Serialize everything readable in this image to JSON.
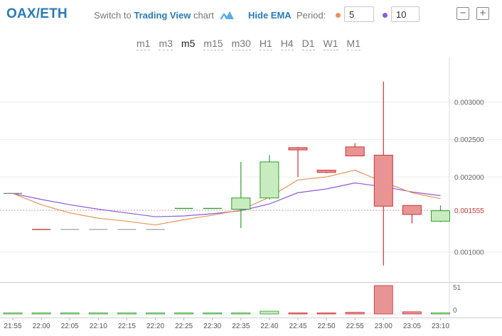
{
  "header": {
    "pair": "OAX/ETH",
    "switch_prefix": "Switch to",
    "switch_link": "Trading View",
    "switch_suffix": "chart",
    "hide_ema": "Hide EMA",
    "period_label": "Period:",
    "period1": "5",
    "period2": "10",
    "zoom_out": "−",
    "zoom_in": "+"
  },
  "timeframes": [
    "m1",
    "m3",
    "m5",
    "m15",
    "m30",
    "H1",
    "H4",
    "D1",
    "W1",
    "M1"
  ],
  "active_timeframe": "m5",
  "colors": {
    "ema1": "#e8935a",
    "ema2": "#8a5be0",
    "up": "#2ca02c",
    "up_fill": "#c8ecbf",
    "down": "#cc3333",
    "down_fill": "#e89494",
    "accent": "#2a7ab8"
  },
  "chart_data": {
    "type": "candlestick",
    "x_labels": [
      "21:55",
      "22:00",
      "22:05",
      "22:10",
      "22:15",
      "22:20",
      "22:25",
      "22:30",
      "22:35",
      "22:40",
      "22:45",
      "22:50",
      "22:55",
      "23:00",
      "23:05",
      "23:10"
    ],
    "y_ticks": [
      "0.003000",
      "0.002500",
      "0.002000",
      "0.001000"
    ],
    "y_tick_values": [
      0.003,
      0.0025,
      0.002,
      0.001
    ],
    "ylim": [
      0.0006,
      0.0036
    ],
    "last_price": "0.001555",
    "last_price_value": 0.001555,
    "volume_ticks": [
      "51",
      "0"
    ],
    "volume_max": 51,
    "candles": [
      {
        "t": "21:55",
        "o": 0.00178,
        "h": 0.00178,
        "l": 0.00178,
        "c": 0.00178,
        "v": 0
      },
      {
        "t": "22:00",
        "o": 0.0013,
        "h": 0.0013,
        "l": 0.0013,
        "c": 0.0013,
        "v": 0
      },
      {
        "t": "22:05",
        "o": 0.0013,
        "h": 0.0013,
        "l": 0.0013,
        "c": 0.0013,
        "v": 0
      },
      {
        "t": "22:10",
        "o": 0.0013,
        "h": 0.0013,
        "l": 0.0013,
        "c": 0.0013,
        "v": 0
      },
      {
        "t": "22:15",
        "o": 0.0013,
        "h": 0.0013,
        "l": 0.0013,
        "c": 0.0013,
        "v": 0
      },
      {
        "t": "22:20",
        "o": 0.0013,
        "h": 0.0013,
        "l": 0.0013,
        "c": 0.0013,
        "v": 0
      },
      {
        "t": "22:25",
        "o": 0.00158,
        "h": 0.00158,
        "l": 0.00158,
        "c": 0.00158,
        "v": 1
      },
      {
        "t": "22:30",
        "o": 0.00158,
        "h": 0.00158,
        "l": 0.00158,
        "c": 0.00158,
        "v": 1
      },
      {
        "t": "22:35",
        "o": 0.00157,
        "h": 0.0022,
        "l": 0.00132,
        "c": 0.00172,
        "v": 2
      },
      {
        "t": "22:40",
        "o": 0.00172,
        "h": 0.00229,
        "l": 0.0017,
        "c": 0.0022,
        "v": 5
      },
      {
        "t": "22:45",
        "o": 0.00239,
        "h": 0.0024,
        "l": 0.002,
        "c": 0.00236,
        "v": 2
      },
      {
        "t": "22:50",
        "o": 0.00209,
        "h": 0.00209,
        "l": 0.00205,
        "c": 0.00206,
        "v": 2
      },
      {
        "t": "22:55",
        "o": 0.0024,
        "h": 0.00245,
        "l": 0.00228,
        "c": 0.00228,
        "v": 3
      },
      {
        "t": "23:00",
        "o": 0.00229,
        "h": 0.00327,
        "l": 0.00082,
        "c": 0.00161,
        "v": 51
      },
      {
        "t": "23:05",
        "o": 0.00162,
        "h": 0.00162,
        "l": 0.00138,
        "c": 0.0015,
        "v": 4
      },
      {
        "t": "23:10",
        "o": 0.00141,
        "h": 0.00162,
        "l": 0.0014,
        "c": 0.00155,
        "v": 2
      }
    ],
    "ema_short": [
      0.00178,
      0.00163,
      0.00152,
      0.00145,
      0.00141,
      0.00136,
      0.00143,
      0.00149,
      0.00156,
      0.00173,
      0.00196,
      0.002,
      0.00209,
      0.00193,
      0.00179,
      0.00171
    ],
    "ema_long": [
      0.00178,
      0.0017,
      0.00163,
      0.00157,
      0.00152,
      0.00147,
      0.00148,
      0.00151,
      0.00155,
      0.00164,
      0.00179,
      0.00184,
      0.00192,
      0.00187,
      0.0018,
      0.00175
    ]
  }
}
